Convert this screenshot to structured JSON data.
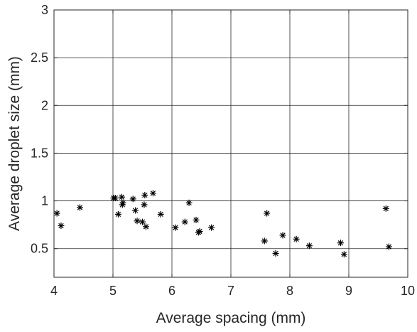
{
  "chart_data": {
    "type": "scatter",
    "title": "",
    "xlabel": "Average spacing (mm)",
    "ylabel": "Average droplet size (mm)",
    "xlim": [
      4,
      10
    ],
    "ylim": [
      0.2,
      3
    ],
    "xticks": [
      4,
      5,
      6,
      7,
      8,
      9,
      10
    ],
    "yticks": [
      0.5,
      1,
      1.5,
      2,
      2.5,
      3
    ],
    "xtick_labels": [
      "4",
      "5",
      "6",
      "7",
      "8",
      "9",
      "10"
    ],
    "ytick_labels": [
      "0.5",
      "1",
      "1.5",
      "2",
      "2.5",
      "3"
    ],
    "grid": true,
    "marker": "asterisk",
    "marker_color": "#000000",
    "series": [
      {
        "x": [
          4.05,
          4.12,
          4.44,
          5.01,
          5.04,
          5.09,
          5.15,
          5.16,
          5.17,
          5.34,
          5.38,
          5.41,
          5.5,
          5.53,
          5.54,
          5.56,
          5.68,
          5.81,
          6.06,
          6.22,
          6.29,
          6.41,
          6.45,
          6.47,
          6.67,
          7.57,
          7.61,
          7.76,
          7.88,
          8.11,
          8.33,
          8.86,
          8.92,
          9.63,
          9.68
        ],
        "y": [
          0.87,
          0.74,
          0.93,
          1.03,
          1.03,
          0.86,
          1.04,
          0.96,
          0.98,
          1.02,
          0.9,
          0.79,
          0.78,
          0.96,
          1.06,
          0.73,
          1.08,
          0.86,
          0.72,
          0.78,
          0.98,
          0.8,
          0.67,
          0.68,
          0.72,
          0.58,
          0.87,
          0.45,
          0.64,
          0.6,
          0.53,
          0.56,
          0.44,
          0.92,
          0.52
        ]
      }
    ]
  }
}
